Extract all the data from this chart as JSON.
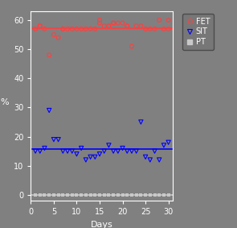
{
  "background_color": "#808080",
  "plot_bg_color": "#808080",
  "xlabel": "Days",
  "ylabel": "%",
  "xlim": [
    0,
    31
  ],
  "ylim": [
    -2,
    63
  ],
  "yticks": [
    0,
    10,
    20,
    30,
    40,
    50,
    60
  ],
  "xticks": [
    0,
    5,
    10,
    15,
    20,
    25,
    30
  ],
  "FET_x": [
    1,
    2,
    2,
    3,
    4,
    5,
    6,
    7,
    7,
    8,
    9,
    10,
    11,
    12,
    13,
    14,
    15,
    15,
    16,
    17,
    17,
    18,
    18,
    19,
    20,
    21,
    21,
    22,
    23,
    24,
    25,
    26,
    27,
    28,
    29,
    30,
    30
  ],
  "FET_y": [
    57,
    58,
    58,
    57,
    48,
    55,
    54,
    57,
    57,
    57,
    57,
    57,
    57,
    57,
    57,
    57,
    59,
    60,
    58,
    58,
    58,
    59,
    59,
    59,
    59,
    58,
    58,
    51,
    58,
    58,
    57,
    57,
    57,
    60,
    57,
    57,
    60
  ],
  "FET_mean": 57.2,
  "FET_color": "#FF4040",
  "SIT_x": [
    1,
    2,
    3,
    4,
    5,
    6,
    7,
    8,
    9,
    10,
    11,
    12,
    13,
    14,
    15,
    16,
    17,
    18,
    19,
    20,
    21,
    22,
    23,
    24,
    25,
    26,
    27,
    28,
    29,
    30
  ],
  "SIT_y": [
    15,
    15,
    16,
    29,
    19,
    19,
    15,
    15,
    15,
    14,
    16,
    12,
    13,
    13,
    14,
    15,
    17,
    15,
    15,
    16,
    15,
    15,
    15,
    25,
    13,
    12,
    15,
    12,
    17,
    18
  ],
  "SIT_mean": 15.7,
  "SIT_color": "#0000FF",
  "PT_x": [
    1,
    2,
    3,
    4,
    5,
    6,
    7,
    8,
    9,
    10,
    11,
    12,
    13,
    14,
    15,
    16,
    17,
    18,
    19,
    20,
    21,
    22,
    23,
    24,
    25,
    26,
    27,
    28,
    29,
    30
  ],
  "PT_y": [
    0,
    0,
    0,
    0,
    0,
    0,
    0,
    0,
    0,
    0,
    0,
    0,
    0,
    0,
    0,
    0,
    0,
    0,
    0,
    0,
    0,
    0,
    0,
    0,
    0,
    0,
    0,
    0,
    0,
    0
  ],
  "PT_mean": 0,
  "PT_color": "#C8C8C8",
  "marker_size_fet": 12,
  "marker_size_sit": 14,
  "marker_size_pt": 8,
  "line_width": 1.2,
  "tick_labelsize": 7,
  "xlabel_fontsize": 8,
  "ylabel_fontsize": 8
}
